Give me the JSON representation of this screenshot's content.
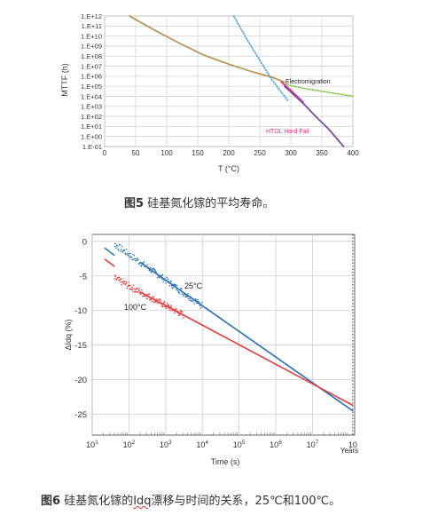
{
  "chart_data": [
    {
      "type": "line",
      "ylabel": "MTTF (h)",
      "xlabel": "T (°C)",
      "x_ticks": [
        0,
        50,
        100,
        150,
        200,
        250,
        300,
        350,
        400
      ],
      "y_ticks": [
        "1.E+12",
        "1.E+11",
        "1.E+10",
        "1.E+09",
        "1.E+08",
        "1.E+07",
        "1.E+06",
        "1.E+05",
        "1.E+04",
        "1.E+03",
        "1.E+02",
        "1.E+01",
        "1.E+00",
        "1.E-01"
      ],
      "xlim": [
        0,
        400
      ],
      "ylim_log10": [
        -1,
        12
      ],
      "grid": true,
      "annotations": [
        "Electromigration",
        "HTOL Hard Fail"
      ],
      "series": [
        {
          "color": "#b8965a",
          "style": "solid",
          "x": [
            40,
            80,
            120,
            160,
            200,
            240,
            270,
            290
          ],
          "y": [
            12,
            10.6,
            9.3,
            8.1,
            7.2,
            6.4,
            5.9,
            5.4
          ]
        },
        {
          "color": "#4a9fd4",
          "style": "dotted",
          "x": [
            208,
            230,
            250,
            270,
            285,
            295
          ],
          "y": [
            12,
            9.6,
            7.6,
            5.6,
            4.4,
            3.6
          ]
        },
        {
          "color": "#7cc040",
          "style": "dotted",
          "x": [
            290,
            320,
            360,
            400
          ],
          "y": [
            5.2,
            4.8,
            4.4,
            4.0
          ]
        },
        {
          "color": "#e0307a",
          "style": "solid",
          "x": [
            285,
            300,
            320
          ],
          "y": [
            5.4,
            4.6,
            3.4
          ]
        },
        {
          "color": "#7a4aa8",
          "style": "solid",
          "x": [
            290,
            320,
            340,
            360,
            385
          ],
          "y": [
            5.0,
            3.3,
            2.0,
            0.8,
            -1.0
          ]
        }
      ]
    },
    {
      "type": "scatter",
      "ylabel": "ΔIdq (%)",
      "xlabel": "Time (s)",
      "x_ticks": [
        "10^1",
        "10^2",
        "10^3",
        "10^4",
        "10^5",
        "10^6",
        "10^7",
        "10"
      ],
      "x_extra_label": "Years",
      "xlim_log10": [
        1,
        8.15
      ],
      "y_ticks": [
        0,
        -5,
        -10,
        -15,
        -20,
        -25
      ],
      "ylim": [
        -28,
        1
      ],
      "grid": true,
      "series": [
        {
          "name": "25°C",
          "color": "#2a6fb8",
          "fit_x_log10": [
            2.3,
            8.1
          ],
          "fit_y": [
            -3.0,
            -24.5
          ]
        },
        {
          "name": "100°C",
          "color": "#e23c3c",
          "fit_x_log10": [
            2.3,
            8.1
          ],
          "fit_y": [
            -7.3,
            -23.7
          ]
        }
      ]
    }
  ],
  "captions": {
    "fig5_label": "图5",
    "fig5_text": "硅基氮化镓的平均寿命。",
    "fig6_label": "图6",
    "fig6_text_pre": "硅基氮化镓的",
    "fig6_squiggle": "Idq",
    "fig6_text_post": "漂移与时间的关系，25℃和100℃。"
  }
}
